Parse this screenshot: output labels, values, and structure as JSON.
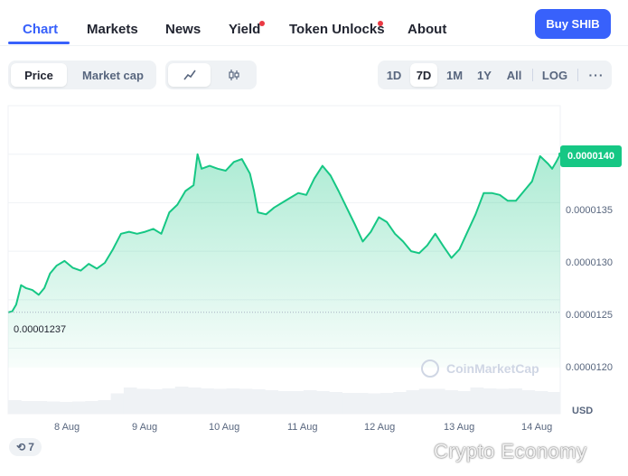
{
  "tabs": [
    {
      "label": "Chart",
      "active": true,
      "dot": false
    },
    {
      "label": "Markets",
      "active": false,
      "dot": false
    },
    {
      "label": "News",
      "active": false,
      "dot": false
    },
    {
      "label": "Yield",
      "active": false,
      "dot": true
    },
    {
      "label": "Token Unlocks",
      "active": false,
      "dot": true
    },
    {
      "label": "About",
      "active": false,
      "dot": false
    }
  ],
  "buy_button": "Buy SHIB",
  "metric_toggle": {
    "price": "Price",
    "market_cap": "Market cap",
    "selected": "Price"
  },
  "chart_style_toggle": {
    "line_icon": "line-chart-icon",
    "candle_icon": "candlestick-icon",
    "selected": "line"
  },
  "ranges": [
    "1D",
    "7D",
    "1M",
    "1Y",
    "All"
  ],
  "selected_range": "7D",
  "scale_button": "LOG",
  "more_icon": "more-icon",
  "colors": {
    "accent": "#3861fb",
    "up": "#16c784",
    "dot": "#ea3943"
  },
  "current_price_label": "0.0000140",
  "start_price_label": "0.00001237",
  "currency": "USD",
  "watermark": "CoinMarketCap",
  "history_badge": {
    "icon": "history-icon",
    "count": "7"
  },
  "overlay_watermark": "Crypto Economy",
  "chart_data": {
    "type": "area",
    "title": "",
    "xlabel": "",
    "ylabel": "",
    "x_ticks": [
      "8 Aug",
      "9 Aug",
      "10 Aug",
      "11 Aug",
      "12 Aug",
      "13 Aug",
      "14 Aug"
    ],
    "y_ticks": [
      "0.0000135",
      "0.0000130",
      "0.0000125",
      "0.0000120"
    ],
    "ylim": [
      1.18e-05,
      1.45e-05
    ],
    "xlim": [
      7.4,
      14.25
    ],
    "series": [
      {
        "points": [
          [
            7.4,
            1.237e-05
          ],
          [
            7.45,
            1.238e-05
          ],
          [
            7.5,
            1.245e-05
          ],
          [
            7.56,
            1.265e-05
          ],
          [
            7.62,
            1.262e-05
          ],
          [
            7.7,
            1.26e-05
          ],
          [
            7.78,
            1.255e-05
          ],
          [
            7.85,
            1.262e-05
          ],
          [
            7.92,
            1.277e-05
          ],
          [
            8.0,
            1.285e-05
          ],
          [
            8.1,
            1.29e-05
          ],
          [
            8.2,
            1.283e-05
          ],
          [
            8.3,
            1.28e-05
          ],
          [
            8.4,
            1.287e-05
          ],
          [
            8.5,
            1.282e-05
          ],
          [
            8.6,
            1.288e-05
          ],
          [
            8.7,
            1.302e-05
          ],
          [
            8.8,
            1.318e-05
          ],
          [
            8.9,
            1.32e-05
          ],
          [
            9.0,
            1.318e-05
          ],
          [
            9.1,
            1.32e-05
          ],
          [
            9.2,
            1.323e-05
          ],
          [
            9.3,
            1.318e-05
          ],
          [
            9.4,
            1.34e-05
          ],
          [
            9.5,
            1.348e-05
          ],
          [
            9.6,
            1.362e-05
          ],
          [
            9.7,
            1.368e-05
          ],
          [
            9.75,
            1.4e-05
          ],
          [
            9.8,
            1.385e-05
          ],
          [
            9.9,
            1.388e-05
          ],
          [
            10.0,
            1.385e-05
          ],
          [
            10.1,
            1.383e-05
          ],
          [
            10.2,
            1.392e-05
          ],
          [
            10.3,
            1.395e-05
          ],
          [
            10.4,
            1.38e-05
          ],
          [
            10.45,
            1.362e-05
          ],
          [
            10.5,
            1.34e-05
          ],
          [
            10.6,
            1.338e-05
          ],
          [
            10.7,
            1.345e-05
          ],
          [
            10.8,
            1.35e-05
          ],
          [
            10.9,
            1.355e-05
          ],
          [
            11.0,
            1.36e-05
          ],
          [
            11.1,
            1.358e-05
          ],
          [
            11.2,
            1.375e-05
          ],
          [
            11.3,
            1.388e-05
          ],
          [
            11.4,
            1.378e-05
          ],
          [
            11.5,
            1.362e-05
          ],
          [
            11.6,
            1.345e-05
          ],
          [
            11.7,
            1.328e-05
          ],
          [
            11.8,
            1.31e-05
          ],
          [
            11.9,
            1.32e-05
          ],
          [
            12.0,
            1.335e-05
          ],
          [
            12.1,
            1.33e-05
          ],
          [
            12.2,
            1.318e-05
          ],
          [
            12.3,
            1.31e-05
          ],
          [
            12.4,
            1.3e-05
          ],
          [
            12.5,
            1.298e-05
          ],
          [
            12.6,
            1.306e-05
          ],
          [
            12.7,
            1.318e-05
          ],
          [
            12.8,
            1.305e-05
          ],
          [
            12.9,
            1.293e-05
          ],
          [
            13.0,
            1.302e-05
          ],
          [
            13.1,
            1.32e-05
          ],
          [
            13.2,
            1.338e-05
          ],
          [
            13.3,
            1.36e-05
          ],
          [
            13.4,
            1.36e-05
          ],
          [
            13.5,
            1.358e-05
          ],
          [
            13.6,
            1.352e-05
          ],
          [
            13.7,
            1.352e-05
          ],
          [
            13.8,
            1.362e-05
          ],
          [
            13.9,
            1.372e-05
          ],
          [
            14.0,
            1.398e-05
          ],
          [
            14.1,
            1.39e-05
          ],
          [
            14.15,
            1.385e-05
          ],
          [
            14.2,
            1.392e-05
          ],
          [
            14.25,
            1.4e-05
          ]
        ]
      }
    ],
    "volume_values": [
      0.3,
      0.28,
      0.28,
      0.27,
      0.26,
      0.27,
      0.28,
      0.3,
      0.45,
      0.58,
      0.55,
      0.54,
      0.56,
      0.6,
      0.58,
      0.56,
      0.55,
      0.56,
      0.55,
      0.54,
      0.52,
      0.5,
      0.5,
      0.52,
      0.5,
      0.48,
      0.46,
      0.46,
      0.45,
      0.46,
      0.48,
      0.52,
      0.55,
      0.55,
      0.52,
      0.5,
      0.58,
      0.56,
      0.55,
      0.56,
      0.52,
      0.5,
      0.48
    ],
    "grid": true
  }
}
